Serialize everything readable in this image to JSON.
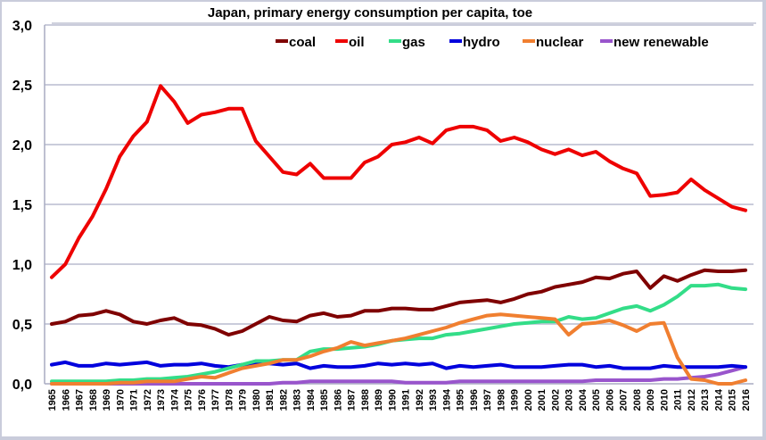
{
  "chart_data": {
    "type": "line",
    "title": "Japan, primary energy consumption per capita, toe",
    "xlabel": "",
    "ylabel": "",
    "ylim": [
      0,
      3.0
    ],
    "yticks": [
      "0,0",
      "0,5",
      "1,0",
      "1,5",
      "2,0",
      "2,5",
      "3,0"
    ],
    "ytick_values": [
      0,
      0.5,
      1.0,
      1.5,
      2.0,
      2.5,
      3.0
    ],
    "grid": true,
    "legend_position": "top-right",
    "x": [
      1965,
      1966,
      1967,
      1968,
      1969,
      1970,
      1971,
      1972,
      1973,
      1974,
      1975,
      1976,
      1977,
      1978,
      1979,
      1980,
      1981,
      1982,
      1983,
      1984,
      1985,
      1986,
      1987,
      1988,
      1989,
      1990,
      1991,
      1992,
      1993,
      1994,
      1995,
      1996,
      1997,
      1998,
      1999,
      2000,
      2001,
      2002,
      2003,
      2004,
      2005,
      2006,
      2007,
      2008,
      2009,
      2010,
      2011,
      2012,
      2013,
      2014,
      2015,
      2016
    ],
    "series": [
      {
        "name": "coal",
        "color": "#7f0000",
        "values": [
          0.5,
          0.52,
          0.57,
          0.58,
          0.61,
          0.58,
          0.52,
          0.5,
          0.53,
          0.55,
          0.5,
          0.49,
          0.46,
          0.41,
          0.44,
          0.5,
          0.56,
          0.53,
          0.52,
          0.57,
          0.59,
          0.56,
          0.57,
          0.61,
          0.61,
          0.63,
          0.63,
          0.62,
          0.62,
          0.65,
          0.68,
          0.69,
          0.7,
          0.68,
          0.71,
          0.75,
          0.77,
          0.81,
          0.83,
          0.85,
          0.89,
          0.88,
          0.92,
          0.94,
          0.8,
          0.9,
          0.86,
          0.91,
          0.95,
          0.94,
          0.94,
          0.95
        ]
      },
      {
        "name": "oil",
        "color": "#ee0000",
        "values": [
          0.89,
          1.0,
          1.22,
          1.4,
          1.63,
          1.9,
          2.07,
          2.19,
          2.49,
          2.36,
          2.18,
          2.25,
          2.27,
          2.3,
          2.3,
          2.03,
          1.9,
          1.77,
          1.75,
          1.84,
          1.72,
          1.72,
          1.72,
          1.85,
          1.9,
          2.0,
          2.02,
          2.06,
          2.01,
          2.12,
          2.15,
          2.15,
          2.12,
          2.03,
          2.06,
          2.02,
          1.96,
          1.92,
          1.96,
          1.91,
          1.94,
          1.86,
          1.8,
          1.76,
          1.57,
          1.58,
          1.6,
          1.71,
          1.62,
          1.55,
          1.48,
          1.45
        ]
      },
      {
        "name": "gas",
        "color": "#33dd88",
        "values": [
          0.02,
          0.02,
          0.02,
          0.02,
          0.02,
          0.03,
          0.03,
          0.04,
          0.04,
          0.05,
          0.06,
          0.08,
          0.1,
          0.13,
          0.16,
          0.19,
          0.19,
          0.2,
          0.2,
          0.27,
          0.29,
          0.29,
          0.3,
          0.31,
          0.33,
          0.36,
          0.37,
          0.38,
          0.38,
          0.41,
          0.42,
          0.44,
          0.46,
          0.48,
          0.5,
          0.51,
          0.52,
          0.52,
          0.56,
          0.54,
          0.55,
          0.59,
          0.63,
          0.65,
          0.61,
          0.66,
          0.73,
          0.82,
          0.82,
          0.83,
          0.8,
          0.79
        ]
      },
      {
        "name": "hydro",
        "color": "#0000dd",
        "values": [
          0.16,
          0.18,
          0.15,
          0.15,
          0.17,
          0.16,
          0.17,
          0.18,
          0.15,
          0.16,
          0.16,
          0.17,
          0.15,
          0.14,
          0.16,
          0.17,
          0.17,
          0.16,
          0.17,
          0.13,
          0.15,
          0.14,
          0.14,
          0.15,
          0.17,
          0.16,
          0.17,
          0.16,
          0.17,
          0.13,
          0.15,
          0.14,
          0.15,
          0.16,
          0.14,
          0.14,
          0.14,
          0.15,
          0.16,
          0.16,
          0.14,
          0.15,
          0.13,
          0.13,
          0.13,
          0.15,
          0.14,
          0.14,
          0.14,
          0.14,
          0.15,
          0.14
        ]
      },
      {
        "name": "nuclear",
        "color": "#f07f30",
        "values": [
          0.0,
          0.0,
          0.0,
          0.0,
          0.0,
          0.01,
          0.01,
          0.02,
          0.02,
          0.02,
          0.04,
          0.06,
          0.05,
          0.09,
          0.13,
          0.15,
          0.17,
          0.2,
          0.2,
          0.23,
          0.27,
          0.3,
          0.35,
          0.32,
          0.34,
          0.36,
          0.38,
          0.41,
          0.44,
          0.47,
          0.51,
          0.54,
          0.57,
          0.58,
          0.57,
          0.56,
          0.55,
          0.54,
          0.41,
          0.5,
          0.51,
          0.53,
          0.49,
          0.44,
          0.5,
          0.51,
          0.22,
          0.04,
          0.03,
          0.0,
          0.0,
          0.03
        ]
      },
      {
        "name": "new renewable",
        "color": "#9955cc",
        "values": [
          0.0,
          0.0,
          0.0,
          0.0,
          0.0,
          0.0,
          0.0,
          0.0,
          0.0,
          0.0,
          0.0,
          0.0,
          0.0,
          0.0,
          0.0,
          0.0,
          0.0,
          0.01,
          0.01,
          0.02,
          0.02,
          0.02,
          0.02,
          0.02,
          0.02,
          0.02,
          0.01,
          0.01,
          0.01,
          0.01,
          0.02,
          0.02,
          0.02,
          0.02,
          0.02,
          0.02,
          0.02,
          0.02,
          0.02,
          0.02,
          0.03,
          0.03,
          0.03,
          0.03,
          0.03,
          0.04,
          0.04,
          0.05,
          0.06,
          0.08,
          0.11,
          0.14
        ]
      }
    ]
  }
}
